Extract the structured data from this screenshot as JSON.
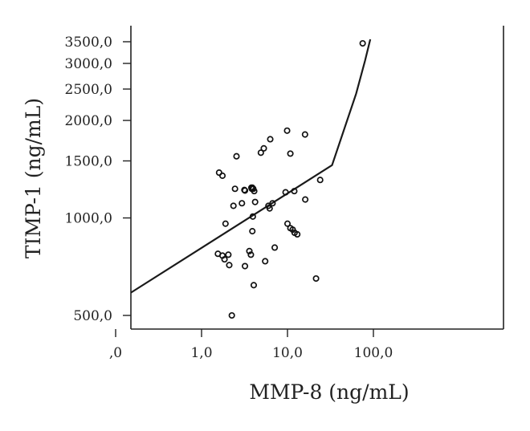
{
  "chart_data": {
    "type": "scatter",
    "title": "",
    "xlabel": "MMP-8 (ng/mL)",
    "ylabel": "TIMP-1 (ng/mL)",
    "x_scale": "log",
    "y_scale": "log",
    "xlim": [
      0.045,
      120
    ],
    "ylim": [
      440,
      3800
    ],
    "x_ticks": [
      {
        "value": 0.1,
        "label": ",0"
      },
      {
        "value": 1,
        "label": "1,0"
      },
      {
        "value": 10,
        "label": "10,0"
      },
      {
        "value": 100,
        "label": "100,0"
      }
    ],
    "y_ticks": [
      {
        "value": 500,
        "label": "500,0"
      },
      {
        "value": 1000,
        "label": "1000,0"
      },
      {
        "value": 1500,
        "label": "1500,0"
      },
      {
        "value": 2000,
        "label": "2000,0"
      },
      {
        "value": 2500,
        "label": "2500,0"
      },
      {
        "value": 3000,
        "label": "3000,0"
      },
      {
        "value": 3500,
        "label": "3500,0"
      }
    ],
    "grid": false,
    "legend": "none",
    "points": [
      {
        "x": 1.6,
        "y": 1380
      },
      {
        "x": 1.75,
        "y": 1350
      },
      {
        "x": 2.55,
        "y": 1550
      },
      {
        "x": 1.55,
        "y": 775
      },
      {
        "x": 1.75,
        "y": 765
      },
      {
        "x": 1.85,
        "y": 745
      },
      {
        "x": 2.05,
        "y": 770
      },
      {
        "x": 2.1,
        "y": 715
      },
      {
        "x": 1.9,
        "y": 960
      },
      {
        "x": 2.35,
        "y": 1090
      },
      {
        "x": 2.45,
        "y": 1230
      },
      {
        "x": 2.25,
        "y": 500
      },
      {
        "x": 2.95,
        "y": 1110
      },
      {
        "x": 3.15,
        "y": 1220
      },
      {
        "x": 3.2,
        "y": 1215
      },
      {
        "x": 3.2,
        "y": 710
      },
      {
        "x": 3.6,
        "y": 790
      },
      {
        "x": 3.75,
        "y": 770
      },
      {
        "x": 3.8,
        "y": 1240
      },
      {
        "x": 3.85,
        "y": 1230
      },
      {
        "x": 3.9,
        "y": 1240
      },
      {
        "x": 4.0,
        "y": 1230
      },
      {
        "x": 4.1,
        "y": 1210
      },
      {
        "x": 4.2,
        "y": 1120
      },
      {
        "x": 3.95,
        "y": 1010
      },
      {
        "x": 3.9,
        "y": 910
      },
      {
        "x": 4.05,
        "y": 620
      },
      {
        "x": 4.9,
        "y": 1590
      },
      {
        "x": 5.3,
        "y": 1640
      },
      {
        "x": 6.3,
        "y": 1750
      },
      {
        "x": 5.5,
        "y": 735
      },
      {
        "x": 6.0,
        "y": 1090
      },
      {
        "x": 6.2,
        "y": 1070
      },
      {
        "x": 6.7,
        "y": 1110
      },
      {
        "x": 7.1,
        "y": 810
      },
      {
        "x": 9.5,
        "y": 1200
      },
      {
        "x": 9.9,
        "y": 1860
      },
      {
        "x": 10.8,
        "y": 1580
      },
      {
        "x": 12.0,
        "y": 1210
      },
      {
        "x": 10.0,
        "y": 960
      },
      {
        "x": 10.8,
        "y": 930
      },
      {
        "x": 11.5,
        "y": 920
      },
      {
        "x": 12.1,
        "y": 900
      },
      {
        "x": 13.0,
        "y": 890
      },
      {
        "x": 16.0,
        "y": 1810
      },
      {
        "x": 16.1,
        "y": 1140
      },
      {
        "x": 21.5,
        "y": 650
      },
      {
        "x": 24.0,
        "y": 1310
      },
      {
        "x": 75.0,
        "y": 3460
      }
    ],
    "fit_line": [
      {
        "x": 0.045,
        "y": 480
      },
      {
        "x": 33.0,
        "y": 1455
      },
      {
        "x": 63.0,
        "y": 2420
      },
      {
        "x": 80.0,
        "y": 3060
      },
      {
        "x": 92.0,
        "y": 3560
      }
    ]
  }
}
